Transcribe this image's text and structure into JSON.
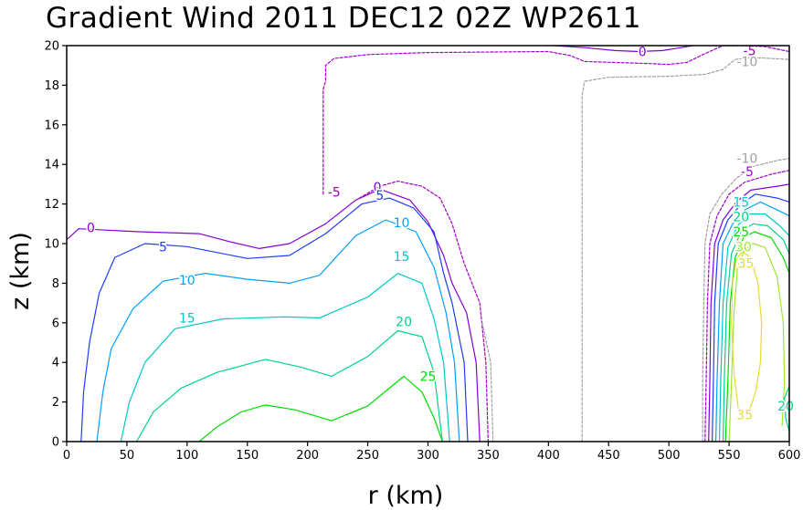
{
  "chart_data": {
    "type": "contour",
    "title": "Gradient Wind 2011 DEC12 02Z  WP2611",
    "xlabel": "r (km)",
    "ylabel": "z (km)",
    "xlim": [
      0,
      600
    ],
    "ylim": [
      0,
      20
    ],
    "x_ticks": [
      "0",
      "50",
      "100",
      "150",
      "200",
      "250",
      "300",
      "350",
      "400",
      "450",
      "500",
      "550",
      "600"
    ],
    "y_ticks": [
      "0",
      "2",
      "4",
      "6",
      "8",
      "10",
      "12",
      "14",
      "16",
      "18",
      "20"
    ],
    "contour_levels": [
      -10,
      -5,
      0,
      5,
      10,
      15,
      20,
      25,
      30,
      35
    ],
    "level_colors": {
      "-10": "#a0a0a0",
      "-5": "#a000c8",
      "0": "#8200dc",
      "5": "#1e3cff",
      "10": "#00a0ff",
      "15": "#00c8c8",
      "20": "#00d28c",
      "25": "#00dc00",
      "30": "#a0e632",
      "35": "#e6dc32"
    },
    "contours": [
      {
        "level": 0,
        "label": "0",
        "points": [
          [
            0,
            10.2
          ],
          [
            10,
            10.75
          ],
          [
            60,
            10.6
          ],
          [
            110,
            10.5
          ],
          [
            135,
            10.1
          ],
          [
            160,
            9.75
          ],
          [
            185,
            10.0
          ],
          [
            215,
            11.0
          ],
          [
            240,
            12.2
          ],
          [
            260,
            12.75
          ],
          [
            285,
            12.2
          ],
          [
            300,
            11.1
          ],
          [
            313,
            9.4
          ],
          [
            320,
            8.0
          ],
          [
            332,
            6.5
          ],
          [
            340,
            4.0
          ],
          [
            343,
            0
          ]
        ]
      },
      {
        "level": 5,
        "label": "5",
        "points": [
          [
            12,
            0
          ],
          [
            14,
            2.5
          ],
          [
            19,
            5.0
          ],
          [
            27,
            7.5
          ],
          [
            40,
            9.3
          ],
          [
            65,
            10.0
          ],
          [
            100,
            9.85
          ],
          [
            150,
            9.25
          ],
          [
            185,
            9.4
          ],
          [
            215,
            10.5
          ],
          [
            245,
            12.0
          ],
          [
            268,
            12.3
          ],
          [
            288,
            11.8
          ],
          [
            305,
            10.6
          ],
          [
            313,
            8.5
          ],
          [
            320,
            7.0
          ],
          [
            330,
            4.0
          ],
          [
            333,
            0
          ]
        ]
      },
      {
        "level": 10,
        "label": "10",
        "points": [
          [
            25,
            0
          ],
          [
            30,
            2.5
          ],
          [
            37,
            4.7
          ],
          [
            55,
            6.7
          ],
          [
            80,
            8.1
          ],
          [
            115,
            8.5
          ],
          [
            150,
            8.2
          ],
          [
            185,
            8.0
          ],
          [
            210,
            8.4
          ],
          [
            240,
            10.4
          ],
          [
            265,
            11.2
          ],
          [
            290,
            10.6
          ],
          [
            305,
            8.8
          ],
          [
            315,
            6.5
          ],
          [
            322,
            4.0
          ],
          [
            326,
            0
          ]
        ]
      },
      {
        "level": 15,
        "label": "15",
        "points": [
          [
            45,
            0
          ],
          [
            52,
            2.0
          ],
          [
            65,
            4.0
          ],
          [
            90,
            5.7
          ],
          [
            130,
            6.2
          ],
          [
            180,
            6.3
          ],
          [
            210,
            6.25
          ],
          [
            250,
            7.3
          ],
          [
            275,
            8.5
          ],
          [
            295,
            8.0
          ],
          [
            305,
            6.2
          ],
          [
            313,
            4.0
          ],
          [
            318,
            0
          ]
        ]
      },
      {
        "level": 20,
        "label": "20",
        "points": [
          [
            58,
            0
          ],
          [
            72,
            1.5
          ],
          [
            95,
            2.7
          ],
          [
            125,
            3.5
          ],
          [
            165,
            4.15
          ],
          [
            195,
            3.75
          ],
          [
            220,
            3.3
          ],
          [
            250,
            4.3
          ],
          [
            275,
            5.6
          ],
          [
            295,
            5.3
          ],
          [
            305,
            3.5
          ],
          [
            312,
            0
          ]
        ]
      },
      {
        "level": 25,
        "label": "25",
        "points": [
          [
            110,
            0
          ],
          [
            125,
            0.75
          ],
          [
            145,
            1.5
          ],
          [
            165,
            1.85
          ],
          [
            190,
            1.6
          ],
          [
            220,
            1.05
          ],
          [
            250,
            1.8
          ],
          [
            280,
            3.3
          ],
          [
            295,
            2.5
          ],
          [
            305,
            1.2
          ],
          [
            312,
            0
          ]
        ]
      },
      {
        "level": 0,
        "label": "0",
        "points": [
          [
            405,
            20.0
          ],
          [
            430,
            19.9
          ],
          [
            455,
            19.75
          ],
          [
            475,
            19.7
          ],
          [
            495,
            19.75
          ],
          [
            510,
            19.9
          ],
          [
            520,
            20.0
          ]
        ]
      },
      {
        "level": -5,
        "label": "-5",
        "points": [
          [
            213,
            12.5
          ],
          [
            213,
            14.5
          ],
          [
            213,
            16.0
          ],
          [
            213,
            17.8
          ],
          [
            215,
            18.2
          ],
          [
            215,
            19.0
          ],
          [
            222,
            19.35
          ],
          [
            250,
            19.55
          ],
          [
            300,
            19.65
          ],
          [
            400,
            19.7
          ],
          [
            418,
            19.5
          ],
          [
            430,
            19.2
          ],
          [
            480,
            19.1
          ],
          [
            500,
            19.05
          ],
          [
            515,
            19.15
          ],
          [
            530,
            19.6
          ],
          [
            545,
            20.0
          ],
          [
            560,
            20.0
          ],
          [
            580,
            19.95
          ],
          [
            600,
            19.7
          ]
        ]
      },
      {
        "level": -10,
        "label": "-10",
        "points": [
          [
            428,
            0
          ],
          [
            428,
            4.0
          ],
          [
            428,
            10.0
          ],
          [
            428,
            16.0
          ],
          [
            428,
            17.5
          ],
          [
            430,
            18.2
          ],
          [
            450,
            18.4
          ],
          [
            500,
            18.45
          ],
          [
            530,
            18.55
          ],
          [
            545,
            18.8
          ],
          [
            555,
            19.3
          ],
          [
            570,
            19.4
          ],
          [
            600,
            19.3
          ]
        ]
      },
      {
        "level": -5,
        "label": "-5",
        "points": [
          [
            243,
            12.3
          ],
          [
            260,
            12.9
          ],
          [
            275,
            13.15
          ],
          [
            295,
            12.9
          ],
          [
            310,
            12.3
          ],
          [
            320,
            11.0
          ],
          [
            330,
            9.0
          ],
          [
            343,
            7.0
          ],
          [
            348,
            4.0
          ],
          [
            350,
            0
          ]
        ]
      },
      {
        "level": -10,
        "label": "-10",
        "points": [
          [
            345,
            6.0
          ],
          [
            352,
            4.0
          ],
          [
            354,
            0
          ]
        ]
      },
      {
        "level": -10,
        "label": "-10",
        "points": [
          [
            528,
            0
          ],
          [
            528,
            3.0
          ],
          [
            529,
            7.0
          ],
          [
            530,
            10.0
          ],
          [
            534,
            11.5
          ],
          [
            544,
            12.5
          ],
          [
            556,
            13.3
          ],
          [
            570,
            13.9
          ],
          [
            590,
            14.2
          ],
          [
            600,
            14.3
          ]
        ]
      },
      {
        "level": -5,
        "label": "-5",
        "points": [
          [
            530,
            0
          ],
          [
            531,
            3.0
          ],
          [
            532,
            7.0
          ],
          [
            534,
            10.0
          ],
          [
            540,
            11.4
          ],
          [
            550,
            12.5
          ],
          [
            563,
            13.1
          ],
          [
            585,
            13.5
          ],
          [
            600,
            13.7
          ]
        ]
      },
      {
        "level": 0,
        "label": "0",
        "points": [
          [
            533,
            0
          ],
          [
            534,
            3.0
          ],
          [
            535,
            7.0
          ],
          [
            538,
            10.0
          ],
          [
            545,
            11.2
          ],
          [
            556,
            12.1
          ],
          [
            568,
            12.7
          ],
          [
            590,
            12.9
          ],
          [
            600,
            13.0
          ]
        ]
      },
      {
        "level": 5,
        "label": "5",
        "points": [
          [
            536,
            0
          ],
          [
            537,
            3.0
          ],
          [
            538,
            7.0
          ],
          [
            541,
            10.0
          ],
          [
            549,
            11.2
          ],
          [
            560,
            12.0
          ],
          [
            572,
            12.5
          ],
          [
            590,
            12.3
          ],
          [
            600,
            12.1
          ]
        ]
      },
      {
        "level": 10,
        "label": "10",
        "points": [
          [
            539,
            0
          ],
          [
            540,
            3.0
          ],
          [
            542,
            7.0
          ],
          [
            545,
            10.0
          ],
          [
            553,
            11.0
          ],
          [
            563,
            11.7
          ],
          [
            576,
            12.1
          ],
          [
            590,
            11.7
          ],
          [
            600,
            11.4
          ]
        ]
      },
      {
        "level": 15,
        "label": "15",
        "points": [
          [
            542,
            0
          ],
          [
            543,
            3.0
          ],
          [
            545,
            7.0
          ],
          [
            549,
            9.8
          ],
          [
            557,
            10.9
          ],
          [
            567,
            11.5
          ],
          [
            580,
            11.5
          ],
          [
            592,
            10.9
          ],
          [
            600,
            10.4
          ]
        ]
      },
      {
        "level": 20,
        "label": "20",
        "points": [
          [
            545,
            0
          ],
          [
            546,
            3.0
          ],
          [
            548,
            7.0
          ],
          [
            552,
            9.5
          ],
          [
            560,
            10.6
          ],
          [
            570,
            11.0
          ],
          [
            582,
            10.9
          ],
          [
            595,
            10.2
          ],
          [
            600,
            9.5
          ]
        ]
      },
      {
        "level": 25,
        "label": "25",
        "points": [
          [
            547,
            0
          ],
          [
            549,
            3.0
          ],
          [
            551,
            7.0
          ],
          [
            555,
            9.3
          ],
          [
            562,
            10.3
          ],
          [
            571,
            10.6
          ],
          [
            585,
            10.3
          ],
          [
            595,
            9.3
          ],
          [
            600,
            8.5
          ]
        ]
      },
      {
        "level": 30,
        "label": "30",
        "points": [
          [
            550,
            0
          ],
          [
            552,
            3.0
          ],
          [
            554,
            6.5
          ],
          [
            557,
            8.8
          ],
          [
            563,
            9.7
          ],
          [
            570,
            10.0
          ],
          [
            580,
            9.8
          ],
          [
            590,
            8.3
          ],
          [
            595,
            6.0
          ],
          [
            596,
            3.0
          ],
          [
            594,
            0.8
          ]
        ]
      },
      {
        "level": 35,
        "label": "35",
        "points": [
          [
            558,
            1.5
          ],
          [
            554,
            3.5
          ],
          [
            552,
            6.0
          ],
          [
            553,
            8.0
          ],
          [
            556,
            9.2
          ],
          [
            561,
            9.6
          ],
          [
            568,
            9.3
          ],
          [
            574,
            8.0
          ],
          [
            577,
            6.0
          ],
          [
            576,
            4.0
          ],
          [
            572,
            2.5
          ],
          [
            566,
            1.4
          ],
          [
            561,
            1.2
          ],
          [
            558,
            1.5
          ]
        ]
      },
      {
        "level": 20,
        "label": "20",
        "points": [
          [
            600,
            0.5
          ],
          [
            597,
            1.2
          ],
          [
            596,
            2.2
          ],
          [
            600,
            2.8
          ]
        ]
      }
    ],
    "contour_labels": [
      {
        "text": "0",
        "x": 20,
        "y": 10.8,
        "level": 0
      },
      {
        "text": "5",
        "x": 80,
        "y": 9.85,
        "level": 5
      },
      {
        "text": "10",
        "x": 100,
        "y": 8.15,
        "level": 10
      },
      {
        "text": "15",
        "x": 100,
        "y": 6.25,
        "level": 15
      },
      {
        "text": "-5",
        "x": 222,
        "y": 12.6,
        "level": -5
      },
      {
        "text": "0",
        "x": 258,
        "y": 12.85,
        "level": 0
      },
      {
        "text": "5",
        "x": 260,
        "y": 12.45,
        "level": 5
      },
      {
        "text": "10",
        "x": 278,
        "y": 11.05,
        "level": 10
      },
      {
        "text": "15",
        "x": 278,
        "y": 9.35,
        "level": 15
      },
      {
        "text": "20",
        "x": 280,
        "y": 6.05,
        "level": 20
      },
      {
        "text": "25",
        "x": 300,
        "y": 3.3,
        "level": 25
      },
      {
        "text": "0",
        "x": 478,
        "y": 19.7,
        "level": 0
      },
      {
        "text": "-5",
        "x": 567,
        "y": 19.75,
        "level": -5
      },
      {
        "text": "-10",
        "x": 565,
        "y": 19.2,
        "level": -10
      },
      {
        "text": "-10",
        "x": 565,
        "y": 14.3,
        "level": -10
      },
      {
        "text": "-5",
        "x": 565,
        "y": 13.65,
        "level": -5
      },
      {
        "text": "15",
        "x": 560,
        "y": 12.1,
        "level": 15
      },
      {
        "text": "20",
        "x": 560,
        "y": 11.35,
        "level": 20
      },
      {
        "text": "25",
        "x": 560,
        "y": 10.6,
        "level": 25
      },
      {
        "text": "30",
        "x": 562,
        "y": 9.85,
        "level": 30
      },
      {
        "text": "35",
        "x": 564,
        "y": 9.0,
        "level": 35
      },
      {
        "text": "35",
        "x": 563,
        "y": 1.35,
        "level": 35
      },
      {
        "text": "20",
        "x": 597,
        "y": 1.8,
        "level": 20
      }
    ]
  }
}
